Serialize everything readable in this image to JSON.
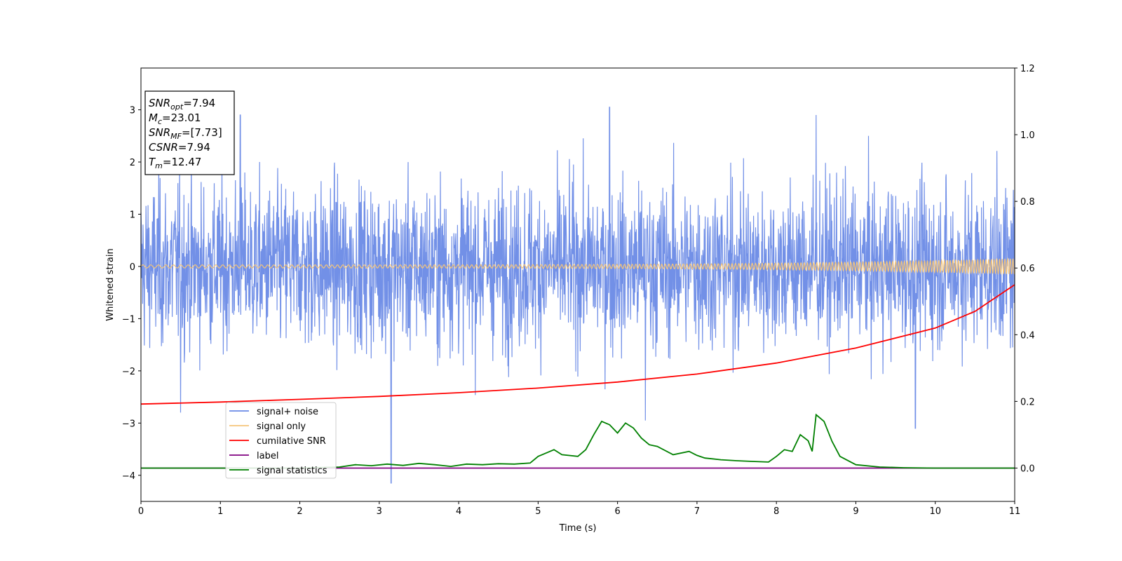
{
  "chart_data": {
    "type": "line",
    "xlabel": "Time (s)",
    "ylabel": "Whitened strain",
    "xlim": [
      0,
      11
    ],
    "ylim": [
      -4.5,
      3.8
    ],
    "y2lim": [
      -0.1,
      1.2
    ],
    "x_ticks": [
      "0",
      "1",
      "2",
      "3",
      "4",
      "5",
      "6",
      "7",
      "8",
      "9",
      "10",
      "11"
    ],
    "y_ticks": [
      "−4",
      "−3",
      "−2",
      "−1",
      "0",
      "1",
      "2",
      "3"
    ],
    "y2_ticks": [
      "0.0",
      "0.2",
      "0.4",
      "0.6",
      "0.8",
      "1.0",
      "1.2"
    ],
    "x_tick_values": [
      0,
      1,
      2,
      3,
      4,
      5,
      6,
      7,
      8,
      9,
      10,
      11
    ],
    "y_tick_values": [
      -4,
      -3,
      -2,
      -1,
      0,
      1,
      2,
      3
    ],
    "y2_tick_values": [
      0,
      0.2,
      0.4,
      0.6,
      0.8,
      1.0,
      1.2
    ],
    "grid": false,
    "legend_position": "lower-left",
    "stats_box": {
      "lines": [
        {
          "sym": "SNR",
          "sub": "opt",
          "val": "=7.94"
        },
        {
          "sym": "M",
          "sub": "c",
          "val": "=23.01"
        },
        {
          "sym": "SNR",
          "sub": "MF",
          "val": "=[7.73]"
        },
        {
          "sym": "CSNR",
          "sub": "",
          "val": "=7.94"
        },
        {
          "sym": "T",
          "sub": "m",
          "val": "=12.47"
        }
      ]
    },
    "series": [
      {
        "name": "signal+ noise",
        "color": "#6a8ae6",
        "axis": "left",
        "kind": "noise",
        "amplitude_std": 0.78,
        "notable_peaks": [
          [
            1.25,
            2.9
          ],
          [
            5.9,
            3.05
          ],
          [
            8.5,
            2.9
          ],
          [
            3.15,
            -4.15
          ],
          [
            9.75,
            -3.1
          ],
          [
            0.5,
            -2.8
          ],
          [
            6.35,
            -2.95
          ]
        ]
      },
      {
        "name": "signal only",
        "color": "#f5c57a",
        "axis": "left",
        "kind": "chirp",
        "amplitude_start": 0.03,
        "amplitude_end": 0.15
      },
      {
        "name": "cumilative SNR",
        "color": "#ff0000",
        "axis": "right",
        "x": [
          0,
          1,
          2,
          3,
          4,
          5,
          6,
          7,
          8,
          9,
          10,
          10.5,
          11
        ],
        "y": [
          0.192,
          0.198,
          0.206,
          0.215,
          0.226,
          0.24,
          0.258,
          0.282,
          0.315,
          0.36,
          0.42,
          0.47,
          0.55
        ]
      },
      {
        "name": "label",
        "color": "#800080",
        "axis": "right",
        "x": [
          0,
          11
        ],
        "y": [
          0,
          0
        ]
      },
      {
        "name": "signal statistics",
        "color": "#008000",
        "axis": "right",
        "x": [
          0,
          0.5,
          1,
          1.5,
          2,
          2.5,
          2.7,
          2.9,
          3.1,
          3.3,
          3.5,
          3.7,
          3.9,
          4.1,
          4.3,
          4.5,
          4.7,
          4.9,
          5.0,
          5.1,
          5.2,
          5.3,
          5.5,
          5.6,
          5.7,
          5.8,
          5.9,
          6.0,
          6.1,
          6.2,
          6.3,
          6.4,
          6.5,
          6.7,
          6.9,
          7.0,
          7.1,
          7.3,
          7.5,
          7.7,
          7.9,
          8.0,
          8.1,
          8.2,
          8.3,
          8.4,
          8.45,
          8.5,
          8.6,
          8.7,
          8.8,
          9.0,
          9.3,
          9.6,
          10,
          10.5,
          11
        ],
        "y": [
          0.0,
          0.0,
          0.0,
          0.0,
          0.0,
          0.003,
          0.01,
          0.007,
          0.012,
          0.008,
          0.014,
          0.01,
          0.005,
          0.012,
          0.01,
          0.013,
          0.012,
          0.015,
          0.035,
          0.045,
          0.055,
          0.04,
          0.035,
          0.055,
          0.1,
          0.14,
          0.13,
          0.105,
          0.135,
          0.12,
          0.09,
          0.07,
          0.065,
          0.04,
          0.05,
          0.038,
          0.03,
          0.025,
          0.022,
          0.02,
          0.018,
          0.035,
          0.055,
          0.05,
          0.1,
          0.082,
          0.05,
          0.16,
          0.14,
          0.08,
          0.035,
          0.01,
          0.003,
          0.001,
          0.0,
          0.0,
          0.0
        ]
      }
    ]
  }
}
